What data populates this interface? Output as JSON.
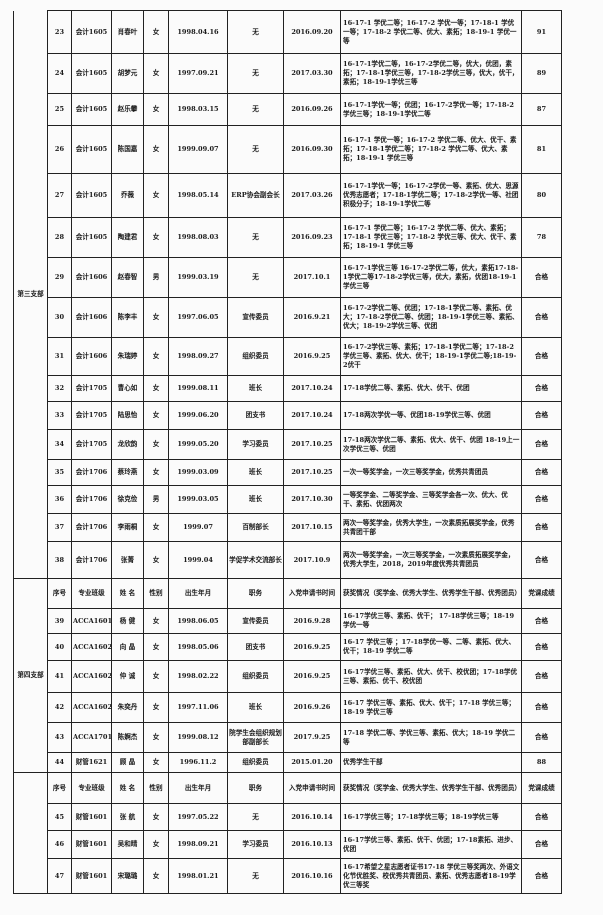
{
  "header_labels": {
    "no": "序号",
    "class": "专业班级",
    "name": "姓 名",
    "gender": "性别",
    "birth": "出生年月",
    "position": "职务",
    "apply_date": "入党申请书时间",
    "awards": "获奖情况（奖学金、优秀大学生、优秀学生干部、优秀团员）",
    "score": "党课成绩"
  },
  "header_labels_alt": {
    "class": "专业班级"
  },
  "sections": [
    {
      "branch": "第三支部",
      "has_header": false,
      "rows": [
        {
          "no": "23",
          "class": "会计1605",
          "name": "肖春叶",
          "gender": "女",
          "birth": "1998.04.16",
          "position": "无",
          "apply_date": "2016.09.20",
          "awards": "16-17-1 学优二等；16-17-2 学优一等；17-18-1 学优一等；17-18-2 学优二等、优大、素拓；18-19-1 学优一等",
          "score": "91"
        },
        {
          "no": "24",
          "class": "会计1605",
          "name": "胡梦元",
          "gender": "女",
          "birth": "1997.09.21",
          "position": "无",
          "apply_date": "2017.03.30",
          "awards": "16-17-1学优二等，16-17-2学优二等，优大，优团，素拓；17-18-1学优三等，17-18-2学优三等，优大，优干，素拓；18-19-1学优三等",
          "score": "89"
        },
        {
          "no": "25",
          "class": "会计1605",
          "name": "赵乐攀",
          "gender": "女",
          "birth": "1998.03.15",
          "position": "无",
          "apply_date": "2016.09.26",
          "awards": "16-17-1学优一等；优团；16-17-2学优一等；17-18-2学优三等；18-19-1学优二等",
          "score": "87"
        },
        {
          "no": "26",
          "class": "会计1605",
          "name": "陈国嘉",
          "gender": "女",
          "birth": "1999.09.07",
          "position": "无",
          "apply_date": "2016.09.30",
          "awards": "16-17-1 学优一等；16-17-2 学优二等、优大、优干、素拓；17-18-1学优二等；17-18-2 学优二等、优大、素拓；18-19-1 学优三等",
          "score": "81"
        },
        {
          "no": "27",
          "class": "会计1605",
          "name": "乔薇",
          "gender": "女",
          "birth": "1998.05.14",
          "position": "ERP协会副会长",
          "apply_date": "2017.03.26",
          "awards": "16-17-1学优一等；16-17-2学优一等、素拓、优大、思源优秀志愿者；17-18-1学优二等；17-18-2学优一等、社团积极分子；18-19-1学优二等",
          "score": "80"
        },
        {
          "no": "28",
          "class": "会计1605",
          "name": "陶建君",
          "gender": "女",
          "birth": "1998.08.03",
          "position": "无",
          "apply_date": "2016.09.23",
          "awards": "16-17-1 学优二等；16-17-2 学优二等、优大、素拓；17-18-1 学优三等；17-18-2 学优三等、优大、优干、素拓；18-19-1 学优三等",
          "score": "78"
        },
        {
          "no": "29",
          "class": "会计1606",
          "name": "赵春智",
          "gender": "男",
          "birth": "1999.03.19",
          "position": "无",
          "apply_date": "2017.10.1",
          "awards": "16-17-1学优三等 16-17-2学优二等，优大，素拓17-18-1学优二等17-18-2学优三等，优大，素拓，优团18-19-1学优三等",
          "score": "合格"
        },
        {
          "no": "30",
          "class": "会计1606",
          "name": "陈李丰",
          "gender": "女",
          "birth": "1997.06.05",
          "position": "宣传委员",
          "apply_date": "2016.9.21",
          "awards": "16-17-2学优二等、优团；17-18-1学优二等、素拓、优大；17-18-2学优二等、优团；18-19-1学优三等、素拓、优大；18-19-2学优三等、优团",
          "score": "合格"
        },
        {
          "no": "31",
          "class": "会计1606",
          "name": "朱瑞婷",
          "gender": "女",
          "birth": "1998.09.27",
          "position": "组织委员",
          "apply_date": "2016.9.25",
          "awards": "16-17-2学优三等、素拓；17-18-1学优二等；17-18-2学优三等、素拓、优大、优干；18-19-1学优二等;18-19-2优干",
          "score": "合格"
        },
        {
          "no": "32",
          "class": "会计1705",
          "name": "曹心如",
          "gender": "女",
          "birth": "1999.08.11",
          "position": "班长",
          "apply_date": "2017.10.24",
          "awards": "17-18学优二等、素拓、优大、优干、优团",
          "score": "合格"
        },
        {
          "no": "33",
          "class": "会计1705",
          "name": "陆思怡",
          "gender": "女",
          "birth": "1999.06.20",
          "position": "团支书",
          "apply_date": "2017.10.24",
          "awards": "17-18两次学优一等、优团18-19学优三等、优团",
          "score": "合格"
        },
        {
          "no": "34",
          "class": "会计1705",
          "name": "龙欣韵",
          "gender": "女",
          "birth": "1999.05.20",
          "position": "学习委员",
          "apply_date": "2017.10.25",
          "awards": "17-18两次学优二等、素拓、优大、优干、优团 18-19上一次学优三等、优团",
          "score": "合格"
        },
        {
          "no": "35",
          "class": "会计1706",
          "name": "蔡玲燕",
          "gender": "女",
          "birth": "1999.03.09",
          "position": "班长",
          "apply_date": "2017.10.25",
          "awards": "一次一等奖学金，一次三等奖学金，优秀共青团员",
          "score": "合格"
        },
        {
          "no": "36",
          "class": "会计1706",
          "name": "徐克俭",
          "gender": "男",
          "birth": "1999.03.05",
          "position": "班长",
          "apply_date": "2017.10.30",
          "awards": "一等奖学金、二等奖学金、三等奖学金各一次、优大、优干、素拓、优团两次",
          "score": "合格"
        },
        {
          "no": "37",
          "class": "会计1706",
          "name": "李雨桐",
          "gender": "女",
          "birth": "1999.07",
          "position": "百制部长",
          "apply_date": "2017.10.15",
          "awards": "两次一等奖学金，优秀大学生，一次素质拓展奖学金，优秀共青团干部",
          "score": "合格"
        },
        {
          "no": "38",
          "class": "会计1706",
          "name": "张菁",
          "gender": "女",
          "birth": "1999.04",
          "position": "学促学术交流部长",
          "apply_date": "2017.10.9",
          "awards": "两次一等奖学金，一次三等奖学金，一次素质拓展奖学金，优秀大学生，2018，2019年度优秀共青团员",
          "score": "合格"
        }
      ]
    },
    {
      "branch": "第四支部",
      "has_header": true,
      "rows": [
        {
          "no": "39",
          "class": "ACCA1601",
          "name": "杨 健",
          "gender": "女",
          "birth": "1998.06.05",
          "position": "宣传委员",
          "apply_date": "2016.9.28",
          "awards": "16-17学优三等、素拓、优干； 17-18学优三等；18-19学优一等",
          "score": "合格"
        },
        {
          "no": "40",
          "class": "ACCA1602",
          "name": "向 晶",
          "gender": "女",
          "birth": "1998.05.06",
          "position": "团支书",
          "apply_date": "2016.9.25",
          "awards": "16-17 学优三等 ；17-18学优一等、二等、素拓、优大、优干；18-19 学优二等",
          "score": "合格"
        },
        {
          "no": "41",
          "class": "ACCA1602",
          "name": "仲 诚",
          "gender": "女",
          "birth": "1998.02.22",
          "position": "组织委员",
          "apply_date": "2016.9.25",
          "awards": "16-17学优三等、素拓、优大、优干、校优团；17-18学优三等、素拓、优干、校优团",
          "score": "合格"
        },
        {
          "no": "42",
          "class": "ACCA1602",
          "name": "朱奕丹",
          "gender": "女",
          "birth": "1997.11.06",
          "position": "班长",
          "apply_date": "2016.9.26",
          "awards": "16-17 学优三等、素拓、优大、优干；17-18 学优三等；18-19 学优三等",
          "score": "合格"
        },
        {
          "no": "43",
          "class": "ACCA1701",
          "name": "陈婀杰",
          "gender": "女",
          "birth": "1999.08.12",
          "position": "院学生会组织规划部副部长",
          "apply_date": "2017.9.25",
          "awards": "17-18 学优二等、学优三等、素拓、优大；18-19 学优二等",
          "score": "合格"
        },
        {
          "no": "44",
          "class": "财管1621",
          "name": "顾 晶",
          "gender": "女",
          "birth": "1996.11.2",
          "position": "组织委员",
          "apply_date": "2015.01.20",
          "awards": "优秀学生干部",
          "score": "88"
        }
      ]
    },
    {
      "branch": "",
      "has_header": true,
      "rows": [
        {
          "no": "45",
          "class": "财管1601",
          "name": "张 航",
          "gender": "女",
          "birth": "1997.05.22",
          "position": "无",
          "apply_date": "2016.10.14",
          "awards": "16-17学优三等；17-18学优三等；18-19学优三等",
          "score": "合格"
        },
        {
          "no": "46",
          "class": "财管1601",
          "name": "吴和晴",
          "gender": "女",
          "birth": "1998.09.21",
          "position": "学习委员",
          "apply_date": "2016.10.13",
          "awards": "16-17学优三等、素拓、优干、优团；17-18素拓、进步、优团",
          "score": "合格"
        },
        {
          "no": "47",
          "class": "财管1601",
          "name": "宋璐璐",
          "gender": "女",
          "birth": "1998.01.21",
          "position": "无",
          "apply_date": "2016.10.16",
          "awards": "16-17希望之星志愿者证书17-18 学优三等奖两次、外语文化节优胜奖、校优秀共青团员、素拓、优秀志愿者18-19学优三等奖",
          "score": "合格"
        }
      ]
    }
  ]
}
